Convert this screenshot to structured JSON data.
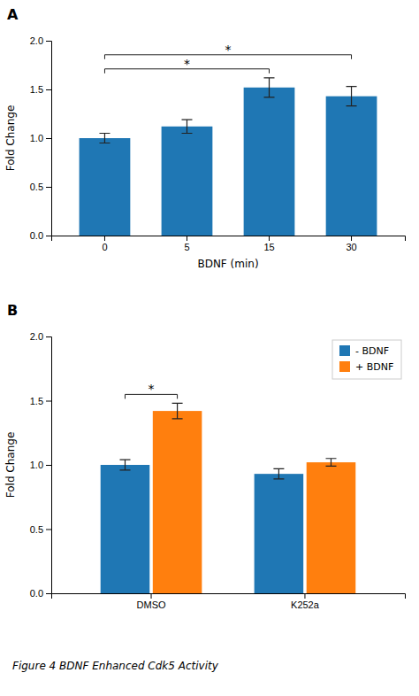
{
  "chart_data": [
    {
      "type": "bar",
      "title": "A",
      "categories": [
        "0",
        "5",
        "15",
        "30"
      ],
      "values": [
        1.0,
        1.12,
        1.52,
        1.43
      ],
      "errors": [
        0.05,
        0.07,
        0.1,
        0.1
      ],
      "xlabel": "BDNF (min)",
      "ylabel": "Fold Change",
      "ylim": [
        0,
        2.0
      ],
      "yticks": [
        {
          "value": 0,
          "label": "0.0"
        },
        {
          "value": 0.5,
          "label": "0.5"
        },
        {
          "value": 1.0,
          "label": "1.0"
        },
        {
          "value": 1.5,
          "label": "1.5"
        },
        {
          "value": 2.0,
          "label": "2.0"
        }
      ],
      "annotations": [
        {
          "text": "*",
          "categories": [
            "0",
            "15"
          ]
        },
        {
          "text": "*",
          "categories": [
            "0",
            "30"
          ]
        }
      ]
    },
    {
      "type": "bar",
      "title": "B",
      "categories": [
        "DMSO",
        "K252a"
      ],
      "series": [
        {
          "name": "- BDNF",
          "values": [
            1.0,
            0.93
          ],
          "errors": [
            0.04,
            0.04
          ]
        },
        {
          "name": "+ BDNF",
          "values": [
            1.42,
            1.02
          ],
          "errors": [
            0.06,
            0.03
          ]
        }
      ],
      "ylabel": "Fold Change",
      "ylim": [
        0,
        2.0
      ],
      "yticks": [
        {
          "value": 0,
          "label": "0.0"
        },
        {
          "value": 0.5,
          "label": "0.5"
        },
        {
          "value": 1.0,
          "label": "1.0"
        },
        {
          "value": 1.5,
          "label": "1.5"
        },
        {
          "value": 2.0,
          "label": "2.0"
        }
      ],
      "legend": "upper right",
      "annotations": [
        {
          "text": "*",
          "group": "DMSO",
          "series": [
            "- BDNF",
            "+ BDNF"
          ]
        },
        {
          "text": "Figure 4  BDNF Enhanced Cdk5 Activity"
        }
      ]
    }
  ]
}
